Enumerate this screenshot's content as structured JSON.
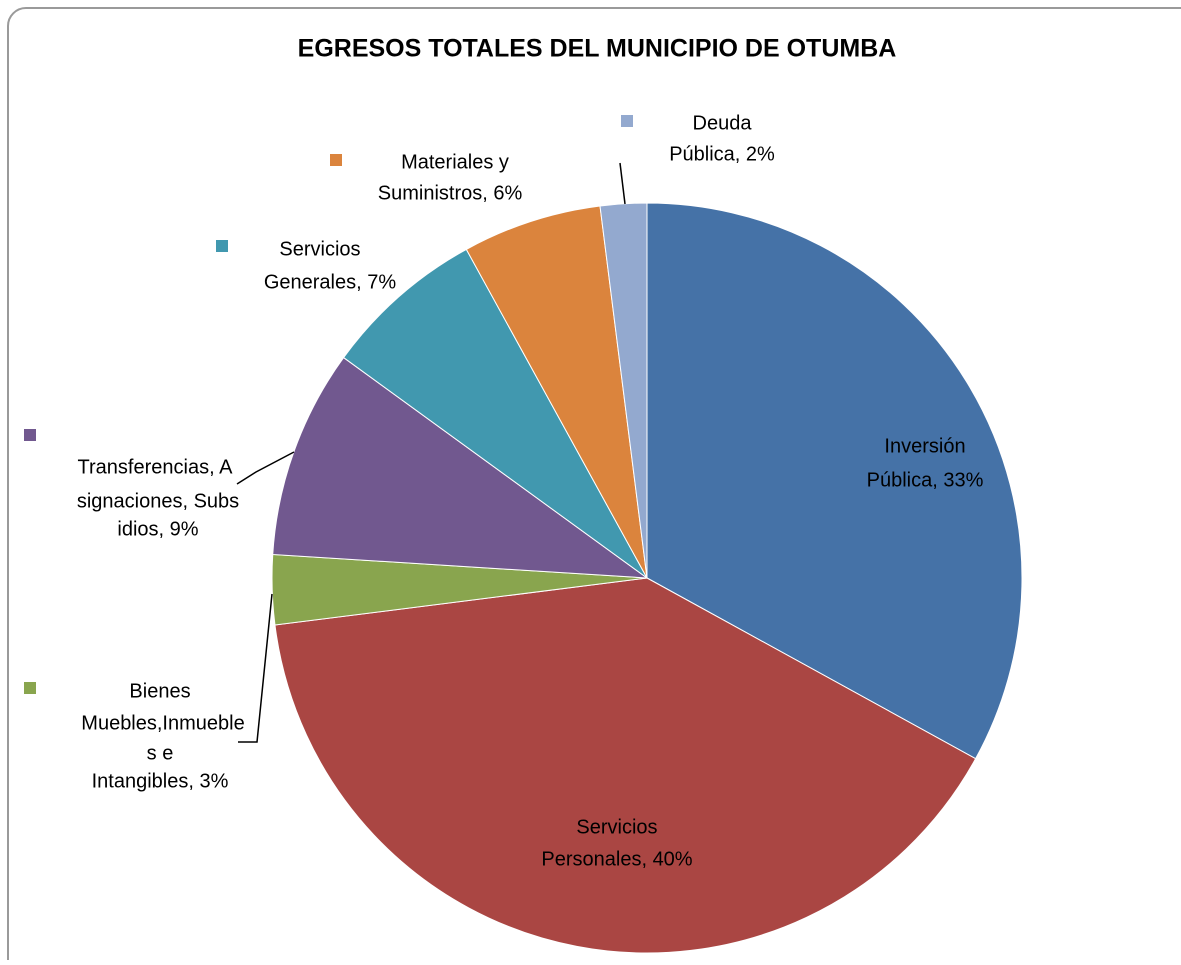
{
  "chart_data": {
    "type": "pie",
    "title": "EGRESOS TOTALES DEL MUNICIPIO DE OTUMBA",
    "labels": [
      [
        "Inversión",
        "Pública, 33%"
      ],
      [
        "Servicios",
        "Personales, 40%"
      ],
      [
        "Bienes",
        "Muebles,Inmueble",
        "s e",
        "Intangibles, 3%"
      ],
      [
        "Transferencias, A",
        "signaciones, Subs",
        "idios, 9%"
      ],
      [
        "Servicios",
        "Generales, 7%"
      ],
      [
        "Materiales y",
        "Suministros, 6%"
      ],
      [
        "Deuda",
        "Pública, 2%"
      ]
    ],
    "values": [
      33,
      40,
      3,
      9,
      7,
      6,
      2
    ],
    "colors": [
      "#4572a7",
      "#aa4643",
      "#89a54e",
      "#71588f",
      "#4198af",
      "#db843d",
      "#93a9cf"
    ]
  }
}
